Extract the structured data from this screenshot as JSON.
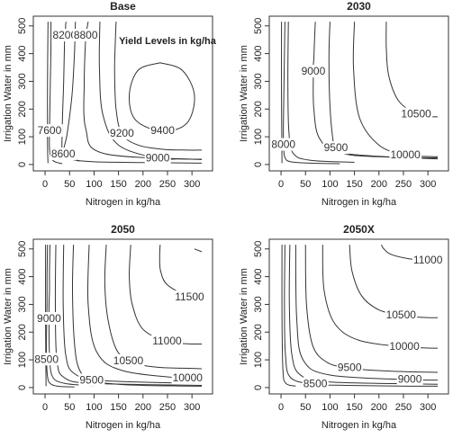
{
  "chart_data": [
    {
      "type": "contour",
      "title": "Base",
      "xlabel": "Nitrogen in kg/ha",
      "ylabel": "Irrigation Water in mm",
      "annotation": "Yield Levels in kg/ha",
      "color": "#333333",
      "xlim": [
        -24,
        342
      ],
      "ylim": [
        -23,
        535
      ],
      "xticks": [
        0,
        50,
        100,
        150,
        200,
        250,
        300
      ],
      "yticks": [
        0,
        100,
        200,
        300,
        400,
        500
      ],
      "contours": [
        {
          "level": null,
          "x": [
            6,
            5,
            5,
            6
          ],
          "y": [
            515,
            300,
            80,
            5
          ]
        },
        {
          "level": 7600,
          "x": [
            12,
            12,
            11,
            10,
            9,
            9,
            12,
            20,
            35
          ],
          "y": [
            515,
            420,
            320,
            220,
            120,
            60,
            25,
            10,
            3
          ]
        },
        {
          "level": 8200,
          "x": [
            43,
            42,
            42,
            41,
            40,
            38,
            35,
            38,
            70
          ],
          "y": [
            515,
            505,
            495,
            480,
            464,
            300,
            120,
            40,
            12
          ]
        },
        {
          "level": 8600,
          "x": [
            62,
            60,
            55,
            45,
            37,
            55,
            100,
            200,
            320
          ],
          "y": [
            515,
            400,
            250,
            110,
            36,
            18,
            10,
            7,
            5
          ]
        },
        {
          "level": 8800,
          "x": [
            88,
            87,
            86,
            84,
            83,
            80,
            83,
            120,
            320
          ],
          "y": [
            515,
            505,
            495,
            480,
            464,
            300,
            130,
            40,
            18
          ]
        },
        {
          "level": 9000,
          "x": [
            112,
            111,
            118,
            150,
            230,
            270,
            300,
            315,
            320
          ],
          "y": [
            515,
            350,
            180,
            70,
            22,
            20,
            19,
            19,
            19
          ]
        },
        {
          "level": 9200,
          "x": [
            145,
            143,
            142,
            145,
            157,
            190,
            240,
            290,
            320
          ],
          "y": [
            515,
            420,
            330,
            200,
            110,
            70,
            55,
            52,
            52
          ]
        },
        {
          "level": 9400,
          "x": [
            235,
            190,
            172,
            185,
            240,
            290,
            305,
            280,
            235
          ],
          "y": [
            367,
            340,
            250,
            160,
            120,
            150,
            250,
            340,
            367
          ]
        }
      ]
    },
    {
      "type": "contour",
      "title": "2030",
      "xlabel": "Nitrogen in kg/ha",
      "ylabel": "Irrigation Water in mm",
      "color": "#333333",
      "xlim": [
        -24,
        342
      ],
      "ylim": [
        -23,
        535
      ],
      "xticks": [
        0,
        50,
        100,
        150,
        200,
        250,
        300
      ],
      "yticks": [
        0,
        100,
        200,
        300,
        400,
        500
      ],
      "contours": [
        {
          "level": null,
          "x": [
            1,
            1,
            2
          ],
          "y": [
            515,
            250,
            5
          ]
        },
        {
          "level": 8000,
          "x": [
            8,
            7,
            6,
            5,
            5,
            8,
            20,
            60,
            120
          ],
          "y": [
            515,
            400,
            280,
            170,
            70,
            25,
            10,
            5,
            3
          ]
        },
        {
          "level": null,
          "x": [
            15,
            14,
            16,
            25,
            60,
            150
          ],
          "y": [
            515,
            300,
            120,
            40,
            15,
            8
          ]
        },
        {
          "level": 9000,
          "x": [
            70,
            68,
            67,
            66,
            66,
            67,
            80,
            130,
            320
          ],
          "y": [
            515,
            430,
            380,
            360,
            334,
            200,
            90,
            40,
            20
          ]
        },
        {
          "level": 9500,
          "x": [
            100,
            98,
            99,
            104,
            112,
            140,
            200,
            260,
            320
          ],
          "y": [
            515,
            400,
            250,
            120,
            58,
            35,
            28,
            25,
            24
          ]
        },
        {
          "level": 10000,
          "x": [
            150,
            148,
            160,
            200,
            254,
            280,
            300,
            315,
            320
          ],
          "y": [
            515,
            350,
            170,
            70,
            32,
            30,
            29,
            28,
            28
          ]
        },
        {
          "level": 10500,
          "x": [
            215,
            215,
            220,
            240,
            276,
            290,
            300,
            310,
            320
          ],
          "y": [
            515,
            420,
            320,
            230,
            180,
            175,
            173,
            172,
            172
          ]
        }
      ]
    },
    {
      "type": "contour",
      "title": "2050",
      "xlabel": "Nitrogen in kg/ha",
      "ylabel": "Irrigation Water in mm",
      "color": "#333333",
      "xlim": [
        -24,
        342
      ],
      "ylim": [
        -23,
        535
      ],
      "xticks": [
        0,
        50,
        100,
        150,
        200,
        250,
        300
      ],
      "yticks": [
        0,
        100,
        200,
        300,
        400,
        500
      ],
      "contours": [
        {
          "level": null,
          "x": [
            1,
            1,
            2
          ],
          "y": [
            515,
            250,
            5
          ]
        },
        {
          "level": 8500,
          "x": [
            5,
            4,
            4,
            3,
            3,
            5,
            10,
            25,
            60
          ],
          "y": [
            515,
            400,
            300,
            200,
            100,
            40,
            15,
            5,
            2
          ]
        },
        {
          "level": 9000,
          "x": [
            10,
            9,
            9,
            8,
            8,
            9,
            15,
            40,
            100
          ],
          "y": [
            515,
            420,
            350,
            300,
            247,
            120,
            40,
            15,
            6
          ]
        },
        {
          "level": null,
          "x": [
            22,
            21,
            24,
            40,
            100,
            320
          ],
          "y": [
            515,
            300,
            100,
            35,
            15,
            8
          ]
        },
        {
          "level": null,
          "x": [
            38,
            37,
            42,
            60,
            120,
            320
          ],
          "y": [
            515,
            300,
            120,
            50,
            25,
            15
          ]
        },
        {
          "level": 9500,
          "x": [
            58,
            56,
            60,
            70,
            95,
            150,
            200,
            260,
            320
          ],
          "y": [
            515,
            350,
            160,
            65,
            25,
            12,
            8,
            6,
            5
          ]
        },
        {
          "level": 10000,
          "x": [
            90,
            88,
            105,
            160,
            291,
            300,
            308,
            314,
            320
          ],
          "y": [
            515,
            300,
            130,
            60,
            32,
            31,
            31,
            30,
            30
          ]
        },
        {
          "level": 10500,
          "x": [
            125,
            122,
            128,
            145,
            170,
            200,
            240,
            280,
            320
          ],
          "y": [
            515,
            380,
            250,
            140,
            95,
            80,
            72,
            70,
            68
          ]
        },
        {
          "level": 11000,
          "x": [
            175,
            172,
            178,
            200,
            249,
            270,
            290,
            305,
            320
          ],
          "y": [
            515,
            400,
            300,
            210,
            165,
            160,
            158,
            157,
            157
          ]
        },
        {
          "level": 11500,
          "x": [
            235,
            234,
            236,
            250,
            295,
            305,
            310,
            315,
            320
          ],
          "y": [
            515,
            470,
            420,
            370,
            325,
            322,
            321,
            320,
            320
          ]
        },
        {
          "level": null,
          "x": [
            305,
            320
          ],
          "y": [
            500,
            490
          ]
        }
      ]
    },
    {
      "type": "contour",
      "title": "2050X",
      "xlabel": "Nitrogen in kg/ha",
      "ylabel": "Irrigation Water in mm",
      "color": "#333333",
      "xlim": [
        -24,
        342
      ],
      "ylim": [
        -23,
        535
      ],
      "xticks": [
        0,
        50,
        100,
        150,
        200,
        250,
        300
      ],
      "yticks": [
        0,
        100,
        200,
        300,
        400,
        500
      ],
      "contours": [
        {
          "level": null,
          "x": [
            2,
            2,
            4,
            10,
            30
          ],
          "y": [
            515,
            250,
            60,
            15,
            5
          ]
        },
        {
          "level": 8500,
          "x": [
            8,
            7,
            9,
            20,
            70,
            130,
            200,
            260,
            320
          ],
          "y": [
            515,
            300,
            120,
            35,
            12,
            8,
            6,
            5,
            5
          ]
        },
        {
          "level": null,
          "x": [
            18,
            17,
            22,
            40,
            100,
            320
          ],
          "y": [
            515,
            300,
            120,
            45,
            20,
            12
          ]
        },
        {
          "level": 9000,
          "x": [
            30,
            32,
            45,
            100,
            263,
            280,
            295,
            308,
            320
          ],
          "y": [
            515,
            250,
            100,
            45,
            28,
            27,
            27,
            27,
            27
          ]
        },
        {
          "level": 9500,
          "x": [
            50,
            52,
            65,
            95,
            140,
            190,
            240,
            280,
            320
          ],
          "y": [
            515,
            300,
            150,
            90,
            70,
            62,
            58,
            56,
            55
          ]
        },
        {
          "level": 10000,
          "x": [
            85,
            88,
            110,
            160,
            252,
            275,
            295,
            310,
            320
          ],
          "y": [
            515,
            350,
            230,
            170,
            146,
            144,
            143,
            142,
            142
          ]
        },
        {
          "level": 10500,
          "x": [
            140,
            145,
            165,
            200,
            245,
            270,
            290,
            305,
            320
          ],
          "y": [
            515,
            420,
            330,
            280,
            260,
            255,
            253,
            252,
            252
          ]
        },
        {
          "level": 11000,
          "x": [
            205,
            210,
            225,
            260,
            300,
            305,
            310,
            315,
            320
          ],
          "y": [
            515,
            500,
            480,
            465,
            458,
            457,
            457,
            456,
            456
          ]
        }
      ]
    }
  ]
}
